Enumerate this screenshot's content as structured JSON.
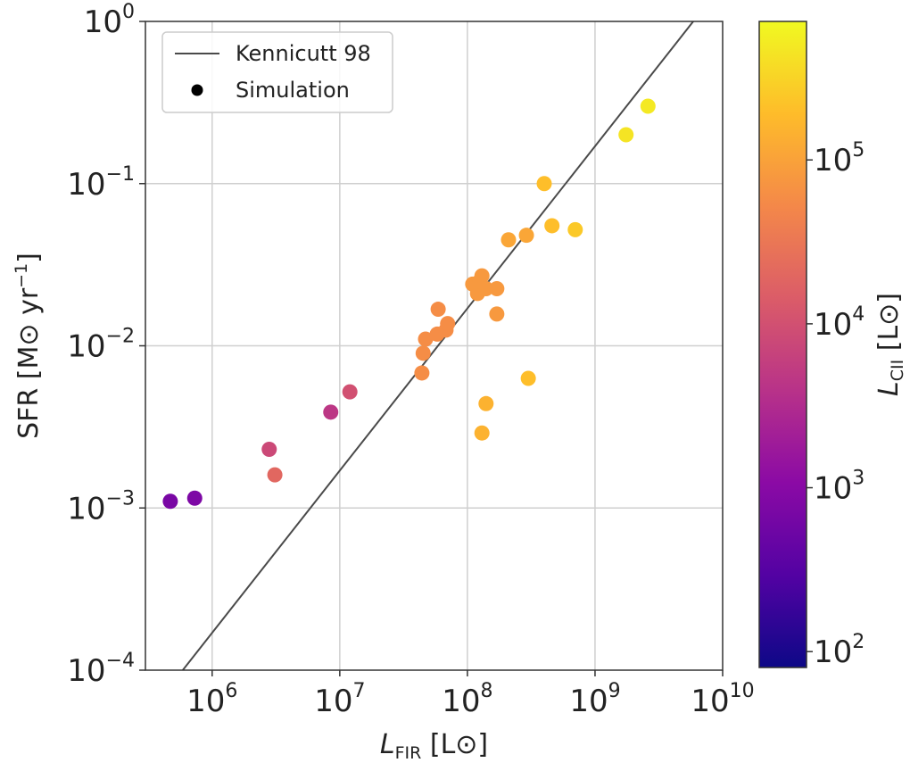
{
  "chart_data": {
    "type": "scatter",
    "title": "",
    "xlabel": "L_FIR [L⊙]",
    "xlabel_parts": {
      "main": "L",
      "sub": "FIR",
      "unit": " [L⊙]"
    },
    "ylabel": "SFR [M⊙ yr⁻¹]",
    "ylabel_parts": {
      "main": "SFR [M⊙ yr",
      "sup": "−1",
      "close": "]"
    },
    "x_scale": "log",
    "y_scale": "log",
    "xlim": [
      300000,
      10000000000
    ],
    "ylim": [
      0.0001,
      1
    ],
    "x_ticks": [
      {
        "value": 1000000,
        "base": "10",
        "exp": "6"
      },
      {
        "value": 10000000,
        "base": "10",
        "exp": "7"
      },
      {
        "value": 100000000,
        "base": "10",
        "exp": "8"
      },
      {
        "value": 1000000000,
        "base": "10",
        "exp": "9"
      },
      {
        "value": 10000000000,
        "base": "10",
        "exp": "10"
      }
    ],
    "y_ticks": [
      {
        "value": 0.0001,
        "base": "10",
        "exp": "−4"
      },
      {
        "value": 0.001,
        "base": "10",
        "exp": "−3"
      },
      {
        "value": 0.01,
        "base": "10",
        "exp": "−2"
      },
      {
        "value": 0.1,
        "base": "10",
        "exp": "−1"
      },
      {
        "value": 1,
        "base": "10",
        "exp": "0"
      }
    ],
    "grid": true,
    "legend": {
      "position": "top-left",
      "entries": [
        {
          "label": "Kennicutt 98",
          "kind": "line",
          "color": "#4a4a4a"
        },
        {
          "label": "Simulation",
          "kind": "marker",
          "color": "#000000"
        }
      ]
    },
    "kennicutt_line": {
      "x_range": [
        300000,
        10000000000
      ],
      "slope": 1,
      "sfr_per_lfir": 1.7e-10,
      "color": "#4a4a4a"
    },
    "series": [
      {
        "name": "Simulation",
        "x": [
          470000,
          730000,
          2800000,
          3100000,
          8500000,
          12000000,
          44000000,
          45000000,
          47000000,
          58000000,
          59000000,
          68000000,
          70000000,
          110000000,
          120000000,
          125000000,
          130000000,
          140000000,
          170000000,
          170000000,
          210000000,
          290000000,
          130000000,
          140000000,
          300000000,
          400000000,
          460000000,
          700000000,
          1750000000,
          2600000000
        ],
        "y": [
          0.0011,
          0.00115,
          0.0023,
          0.0016,
          0.0039,
          0.0052,
          0.0068,
          0.009,
          0.011,
          0.0118,
          0.0168,
          0.0125,
          0.0137,
          0.024,
          0.021,
          0.025,
          0.027,
          0.0225,
          0.0225,
          0.0157,
          0.045,
          0.048,
          0.0029,
          0.0044,
          0.0063,
          0.1,
          0.055,
          0.052,
          0.2,
          0.3
        ],
        "color_value": [
          700,
          780,
          8000,
          20000,
          4500,
          10000,
          60000,
          60000,
          60000,
          60000,
          60000,
          60000,
          60000,
          80000,
          80000,
          80000,
          80000,
          80000,
          80000,
          80000,
          110000,
          110000,
          150000,
          150000,
          200000,
          200000,
          200000,
          250000,
          450000,
          500000
        ]
      }
    ],
    "colorbar": {
      "label_parts": {
        "main": "L",
        "sub": "CII",
        "unit": " [L⊙]"
      },
      "scale": "log",
      "range": [
        80,
        700000
      ],
      "colormap": "plasma",
      "colormap_stops": [
        "#0d0887",
        "#5302a3",
        "#8b0aa5",
        "#b83289",
        "#db5c68",
        "#f48849",
        "#febc2a",
        "#f0f921"
      ],
      "ticks": [
        {
          "value": 100,
          "base": "10",
          "exp": "2"
        },
        {
          "value": 1000,
          "base": "10",
          "exp": "3"
        },
        {
          "value": 10000,
          "base": "10",
          "exp": "4"
        },
        {
          "value": 100000,
          "base": "10",
          "exp": "5"
        }
      ]
    }
  }
}
